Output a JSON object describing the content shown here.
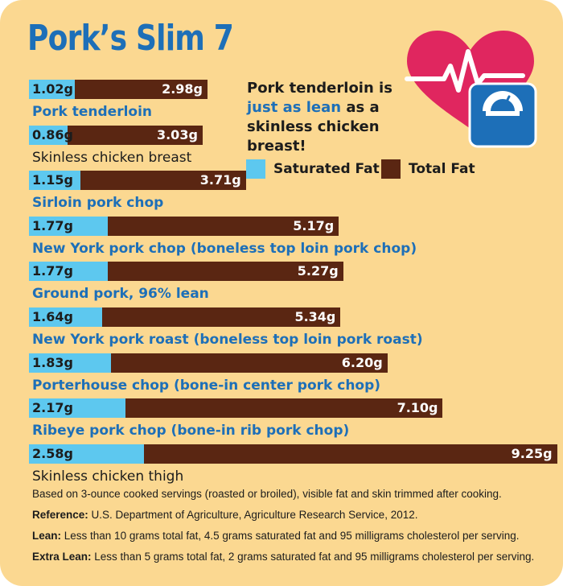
{
  "title": "Pork’s Slim 7",
  "headline": {
    "line1": "Pork tenderloin is",
    "highlight": "just as lean",
    "line2_rest": " as a",
    "line3": "skinless chicken breast!"
  },
  "legend": {
    "saturated": "Saturated Fat",
    "total": "Total Fat",
    "position": "top-right"
  },
  "colors": {
    "background": "#fbd891",
    "saturated": "#5dc8ef",
    "total": "#5a2612",
    "pork_label": "#1d6fb8",
    "title": "#1d6fb8",
    "heart": "#e0265f",
    "scale": "#1d6fb8"
  },
  "icons": [
    "heart-pulse-icon",
    "scale-icon"
  ],
  "chart_data": {
    "type": "bar",
    "orientation": "horizontal",
    "unit": "g",
    "series": [
      {
        "name": "Saturated Fat",
        "values": [
          1.02,
          0.86,
          1.15,
          1.77,
          1.77,
          1.64,
          1.83,
          2.17,
          2.58
        ]
      },
      {
        "name": "Total Fat",
        "values": [
          2.98,
          3.03,
          3.71,
          5.17,
          5.27,
          5.34,
          6.2,
          7.1,
          9.25
        ]
      }
    ],
    "labels_sat": [
      "1.02g",
      "0.86g",
      "1.15g",
      "1.77g",
      "1.77g",
      "1.64g",
      "1.83g",
      "2.17g",
      "2.58g"
    ],
    "labels_total": [
      "2.98g",
      "3.03g",
      "3.71g",
      "5.17g",
      "5.27g",
      "5.34g",
      "6.20g",
      "7.10g",
      "9.25g"
    ],
    "categories": [
      "Pork tenderloin",
      "Skinless chicken breast",
      "Sirloin pork chop",
      "New York pork chop (boneless top loin pork chop)",
      "Ground pork, 96% lean",
      "New York pork roast (boneless top loin pork roast)",
      "Porterhouse chop (bone-in center pork chop)",
      "Ribeye pork chop (bone-in rib pork chop)",
      "Skinless chicken thigh"
    ],
    "category_kind": [
      "pork",
      "chicken",
      "pork",
      "pork",
      "pork",
      "pork",
      "pork",
      "pork",
      "chicken"
    ],
    "grid": false,
    "stacked": true
  },
  "notes": {
    "basis": "Based on 3-ounce cooked servings (roasted or broiled), visible fat and skin trimmed after cooking.",
    "reference_label": "Reference:",
    "reference_text": " U.S. Department of Agriculture, Agriculture Research Service, 2012.",
    "lean_label": "Lean:",
    "lean_text": "  Less than 10 grams total fat, 4.5 grams saturated fat and 95 milligrams cholesterol per serving.",
    "extra_lean_label": "Extra Lean:",
    "extra_lean_text": "  Less than 5 grams total fat, 2 grams saturated fat and 95 milligrams cholesterol per serving."
  }
}
